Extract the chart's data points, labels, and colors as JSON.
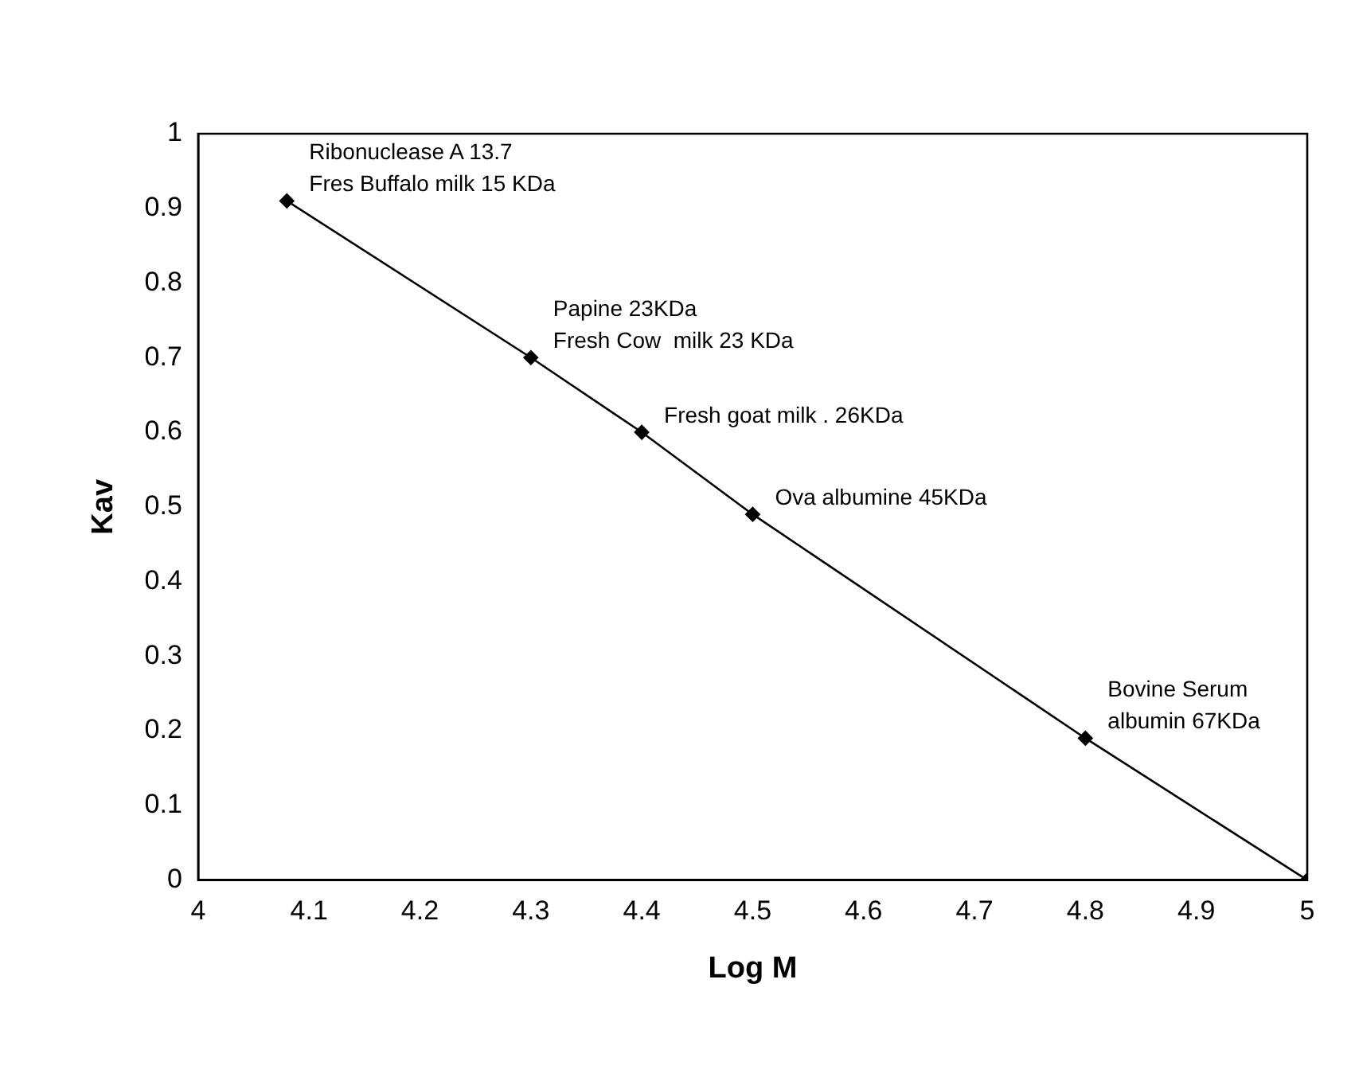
{
  "chart_data": {
    "type": "line",
    "xlabel": "Log M",
    "ylabel": "Kav",
    "x": [
      4.08,
      4.3,
      4.4,
      4.5,
      4.8,
      5.0
    ],
    "series": [
      {
        "color": "#000000",
        "values": [
          0.91,
          0.7,
          0.6,
          0.49,
          0.19,
          0
        ]
      }
    ],
    "xlim": [
      4,
      5
    ],
    "xticks": [
      4,
      4.1,
      4.2,
      4.3,
      4.4,
      4.5,
      4.6,
      4.7,
      4.8,
      4.9,
      5
    ],
    "ylim": [
      0,
      1
    ],
    "yticks": [
      0,
      0.1,
      0.2,
      0.3,
      0.4,
      0.5,
      0.6,
      0.7,
      0.8,
      0.9,
      1
    ],
    "grid": false,
    "legend": false,
    "marker": "diamond",
    "line_style": "solid",
    "annotations": [
      {
        "text": "Ribonuclease A 13.7\nFres Buffalo milk 15 KDa",
        "x": 4.08,
        "y": 0.91
      },
      {
        "text": "Papine 23KDa\nFresh Cow  milk 23 KDa",
        "x": 4.3,
        "y": 0.7
      },
      {
        "text": "Fresh goat milk . 26KDa",
        "x": 4.4,
        "y": 0.6
      },
      {
        "text": "Ova albumine 45KDa",
        "x": 4.5,
        "y": 0.49
      },
      {
        "text": "Bovine Serum\nalbumin 67KDa",
        "x": 4.8,
        "y": 0.19
      }
    ]
  }
}
